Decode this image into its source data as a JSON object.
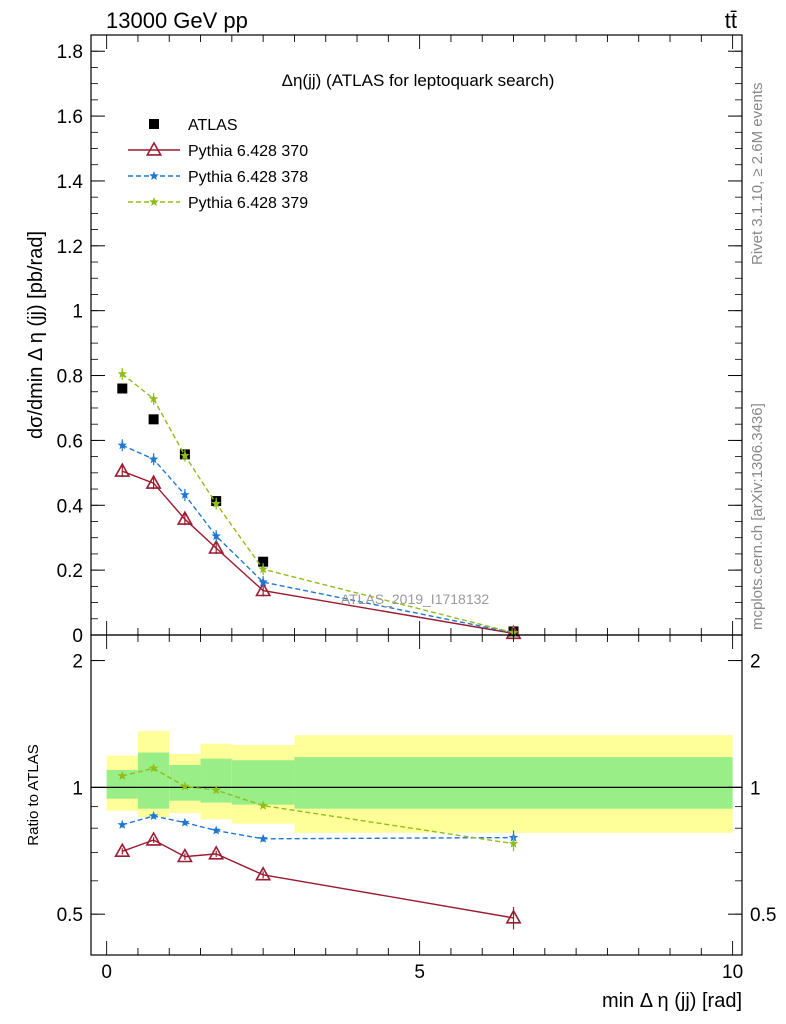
{
  "header": {
    "energy_label": "13000 GeV pp",
    "process_label": "tt̄"
  },
  "side_labels": {
    "rivet": "Rivet 3.1.10, ≥ 2.6M events",
    "mcplots": "mcplots.cern.ch [arXiv:1306.3436]"
  },
  "chart_data": [
    {
      "type": "line",
      "panel": "main",
      "title": "Δη(jj) (ATLAS for leptoquark search)",
      "ylabel": "dσ/dmin Δ η (jj) [pb/rad]",
      "xlabel": "min Δ η (jj) [rad]",
      "watermark": "ATLAS_2019_I1718132",
      "xlim": [
        -0.25,
        10.15
      ],
      "ylim": [
        0,
        1.85
      ],
      "x_ticks": [
        "0",
        "5",
        "10"
      ],
      "y_ticks": [
        "0",
        "0.2",
        "0.4",
        "0.6",
        "0.8",
        "1",
        "1.2",
        "1.4",
        "1.6",
        "1.8"
      ],
      "legend_position": "top-left",
      "x": [
        0.25,
        0.75,
        1.25,
        1.75,
        2.5,
        6.5
      ],
      "series": [
        {
          "name": "ATLAS",
          "marker": "square",
          "color": "#000000",
          "values": [
            0.76,
            0.665,
            0.557,
            0.413,
            0.226,
            0.011
          ]
        },
        {
          "name": "Pythia 6.428 370",
          "marker": "open-triangle",
          "color": "#9b1b30",
          "line": "solid",
          "values": [
            0.505,
            0.468,
            0.357,
            0.268,
            0.137,
            0.005
          ]
        },
        {
          "name": "Pythia 6.428 378",
          "marker": "star",
          "color": "#1f77d4",
          "line": "dashed",
          "values": [
            0.585,
            0.542,
            0.432,
            0.305,
            0.163,
            0.007
          ]
        },
        {
          "name": "Pythia 6.428 379",
          "marker": "star",
          "color": "#8fbd1a",
          "line": "dashed",
          "values": [
            0.805,
            0.728,
            0.553,
            0.405,
            0.203,
            0.007
          ]
        }
      ]
    },
    {
      "type": "line",
      "panel": "ratio",
      "ylabel": "Ratio to ATLAS",
      "xlabel": "min Δ η (jj) [rad]",
      "xlim": [
        -0.25,
        10.15
      ],
      "ylim": [
        0.4,
        2.3
      ],
      "y_ticks": [
        "0.5",
        "1",
        "2"
      ],
      "x": [
        0.25,
        0.75,
        1.25,
        1.75,
        2.5,
        6.5
      ],
      "bands": {
        "edges": [
          0,
          0.5,
          1,
          1.5,
          2,
          3,
          10
        ],
        "yellow": [
          [
            0.88,
            1.19
          ],
          [
            0.85,
            1.36
          ],
          [
            0.87,
            1.2
          ],
          [
            0.84,
            1.27
          ],
          [
            0.82,
            1.26
          ],
          [
            0.78,
            1.33
          ]
        ],
        "green": [
          [
            0.94,
            1.1
          ],
          [
            0.89,
            1.21
          ],
          [
            0.93,
            1.13
          ],
          [
            0.92,
            1.17
          ],
          [
            0.91,
            1.16
          ],
          [
            0.89,
            1.18
          ]
        ]
      },
      "series": [
        {
          "name": "Pythia 6.428 370",
          "marker": "open-triangle",
          "color": "#9b1b30",
          "line": "solid",
          "values": [
            0.705,
            0.75,
            0.685,
            0.695,
            0.62,
            0.49
          ],
          "last_error": 0.03
        },
        {
          "name": "Pythia 6.428 378",
          "marker": "star",
          "color": "#1f77d4",
          "line": "dashed",
          "values": [
            0.815,
            0.855,
            0.825,
            0.79,
            0.755,
            0.76
          ],
          "last_error": 0.03
        },
        {
          "name": "Pythia 6.428 379",
          "marker": "star",
          "color": "#8fbd1a",
          "line": "dashed",
          "values": [
            1.065,
            1.11,
            1.005,
            0.985,
            0.905,
            0.735
          ],
          "last_error": 0.03
        }
      ]
    }
  ]
}
